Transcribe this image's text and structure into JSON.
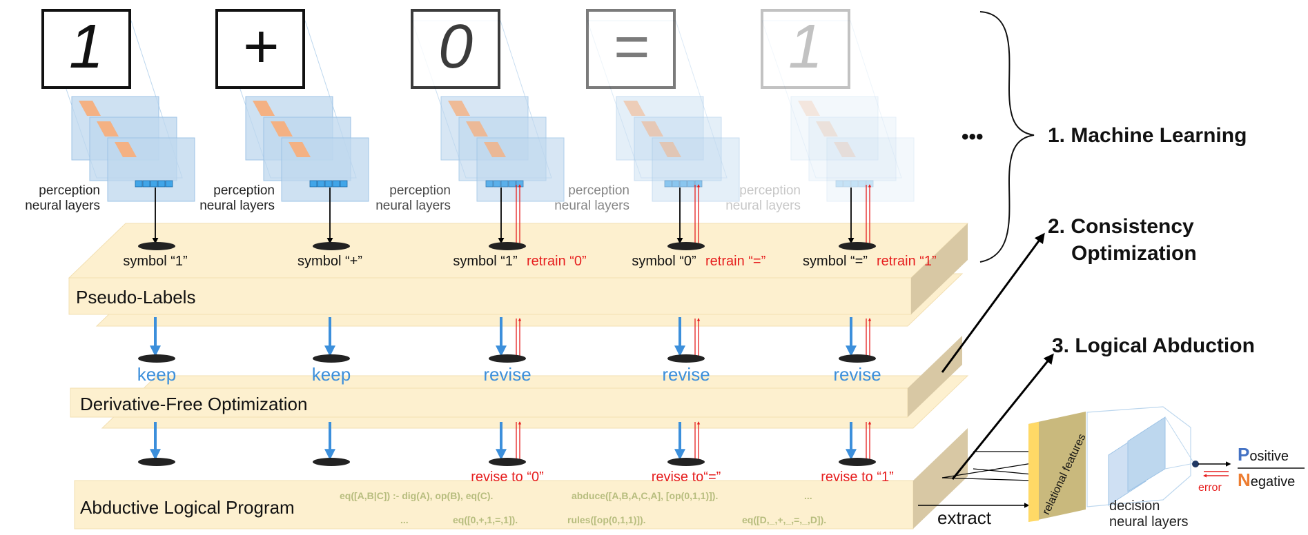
{
  "columns": [
    {
      "digit": "1",
      "perception_line1": "perception",
      "perception_line2": "neural layers",
      "symbol": "symbol “1”",
      "retrain": "",
      "action": "keep",
      "revise": ""
    },
    {
      "digit": "+",
      "perception_line1": "perception",
      "perception_line2": "neural layers",
      "symbol": "symbol “+”",
      "retrain": "",
      "action": "keep",
      "revise": ""
    },
    {
      "digit": "0",
      "perception_line1": "perception",
      "perception_line2": "neural layers",
      "symbol": "symbol “1”",
      "retrain": "retrain “0”",
      "action": "revise",
      "revise": "revise to “0”"
    },
    {
      "digit": "=",
      "perception_line1": "perception",
      "perception_line2": "neural layers",
      "symbol": "symbol “0”",
      "retrain": "retrain “=”",
      "action": "revise",
      "revise": "revise to“=”"
    },
    {
      "digit": "1",
      "perception_line1": "perception",
      "perception_line2": "neural layers",
      "symbol": "symbol “=”",
      "retrain": "retrain “1”",
      "action": "revise",
      "revise": "revise to “1”"
    }
  ],
  "ellipsis": "•••",
  "steps": {
    "machine_learning": "1. Machine Learning",
    "consistency_line1": "2. Consistency",
    "consistency_line2": "Optimization",
    "logical_abduction": "3. Logical Abduction"
  },
  "layers": {
    "pseudo_labels": "Pseudo-Labels",
    "dfo": "Derivative-Free Optimization",
    "alp": "Abductive Logical Program"
  },
  "program_code": {
    "line1": [
      "eq([A,B|C]) :- dig(A), op(B), eq(C).",
      "abduce([A,B,A,C,A], [op(0,1,1)]).",
      "..."
    ],
    "line2": [
      "...",
      "eq([0,+,1,=,1]).",
      "rules([op(0,1,1)]).",
      "eq([D,_,+,_,=,_,D])."
    ]
  },
  "extract_label": "extract",
  "relational_features": "relational features",
  "decision_line1": "decision",
  "decision_line2": "neural layers",
  "error_label": "error",
  "output": {
    "positive_initial": "P",
    "positive_rest": "ositive",
    "negative_initial": "N",
    "negative_rest": "egative"
  },
  "colors": {
    "blue_text": "#3c8fdb",
    "red_text": "#e61e1e",
    "slab_face": "#fdf0cf",
    "slab_side": "#d8c8a4",
    "code_text": "#b7bd7e",
    "positive": "#4472c4",
    "negative": "#ed7d31"
  }
}
